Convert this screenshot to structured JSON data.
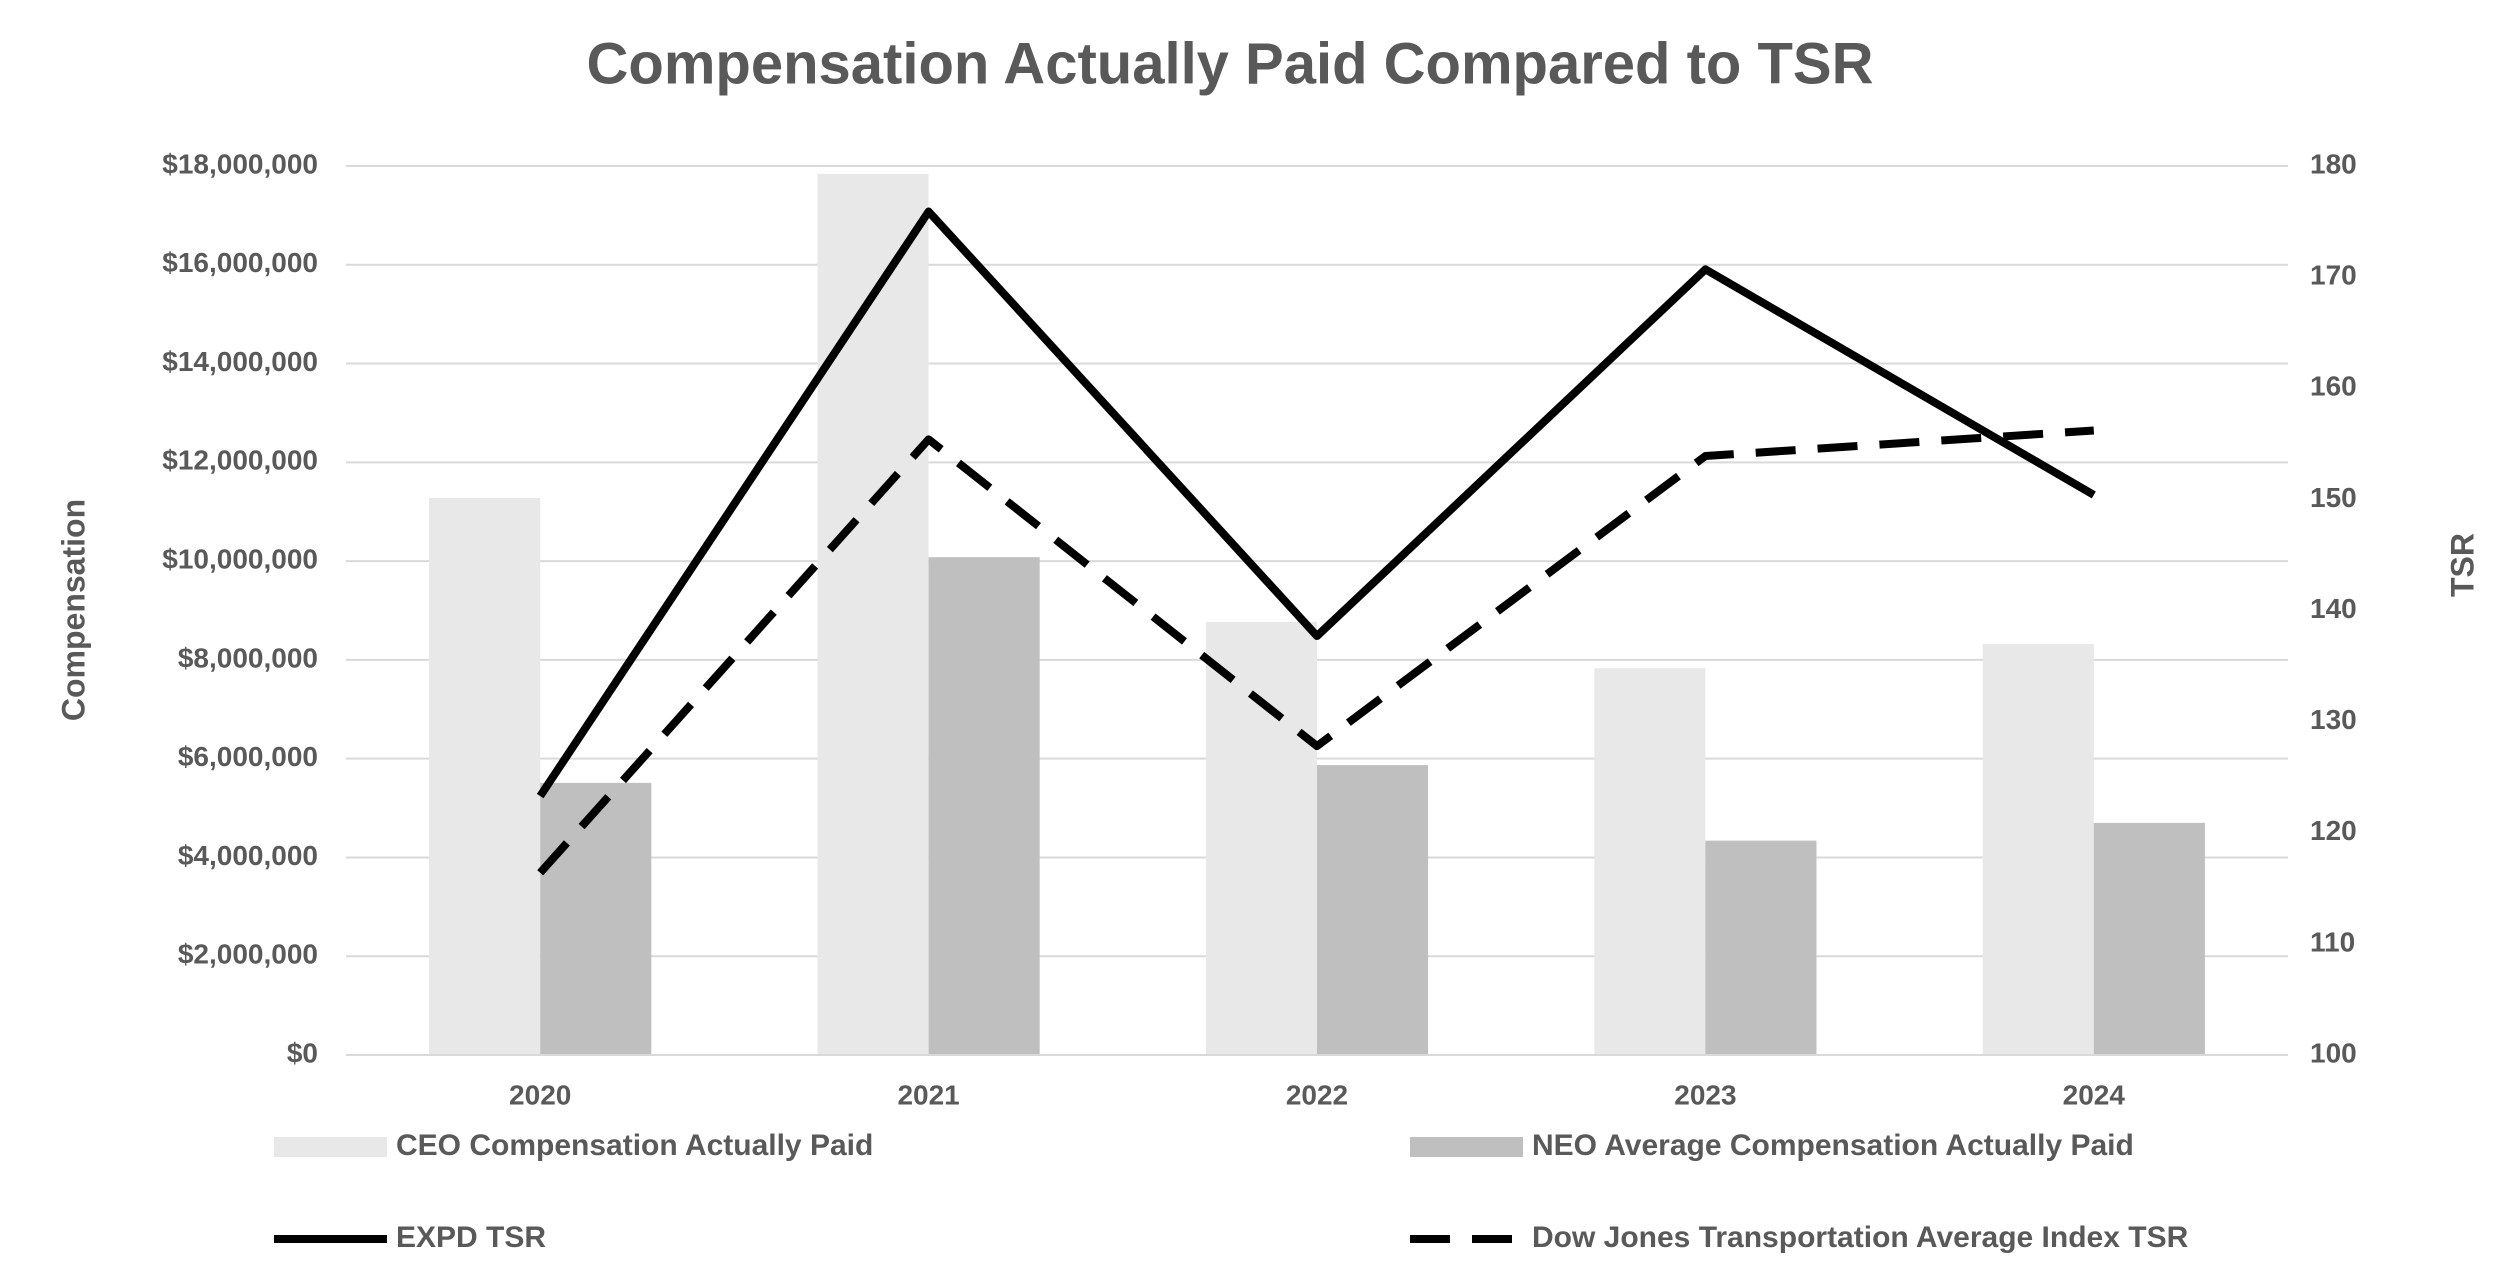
{
  "chart_data": {
    "type": "bar",
    "title": "Compensation Actually Paid Compared to TSR",
    "y_label": "Compensation",
    "y2_label": "TSR",
    "categories": [
      "2020",
      "2021",
      "2022",
      "2023",
      "2024"
    ],
    "series": [
      {
        "name": "CEO Compensation Actually Paid",
        "type": "bar",
        "color": "#e8e8e8",
        "values": [
          11280000,
          17840000,
          8770000,
          7830000,
          8320000
        ]
      },
      {
        "name": "NEO Average Compensation Actually Paid",
        "type": "bar",
        "color": "#bfbfbf",
        "values": [
          5510000,
          10080000,
          5870000,
          4340000,
          4700000
        ]
      },
      {
        "name": "EXPD TSR",
        "type": "line",
        "axis": "y2",
        "color": "#000000",
        "line_style": "solid",
        "values": [
          123.3,
          175.9,
          137.7,
          170.7,
          150.4
        ]
      },
      {
        "name": "Dow Jones Transportation Average Index TSR",
        "type": "line",
        "axis": "y2",
        "color": "#000000",
        "line_style": "dashed",
        "values": [
          116.4,
          155.4,
          127.8,
          153.9,
          156.2
        ]
      }
    ],
    "ylim": [
      0,
      18000000
    ],
    "yticks": [
      {
        "value": 0,
        "label": "$0"
      },
      {
        "value": 2000000,
        "label": "$2,000,000"
      },
      {
        "value": 4000000,
        "label": "$4,000,000"
      },
      {
        "value": 6000000,
        "label": "$6,000,000"
      },
      {
        "value": 8000000,
        "label": "$8,000,000"
      },
      {
        "value": 10000000,
        "label": "$10,000,000"
      },
      {
        "value": 12000000,
        "label": "$12,000,000"
      },
      {
        "value": 14000000,
        "label": "$14,000,000"
      },
      {
        "value": 16000000,
        "label": "$16,000,000"
      },
      {
        "value": 18000000,
        "label": "$18,000,000"
      }
    ],
    "y2lim": [
      100,
      180
    ],
    "y2ticks": [
      100,
      110,
      120,
      130,
      140,
      150,
      160,
      170,
      180
    ],
    "grid": true,
    "legend": "bottom"
  }
}
